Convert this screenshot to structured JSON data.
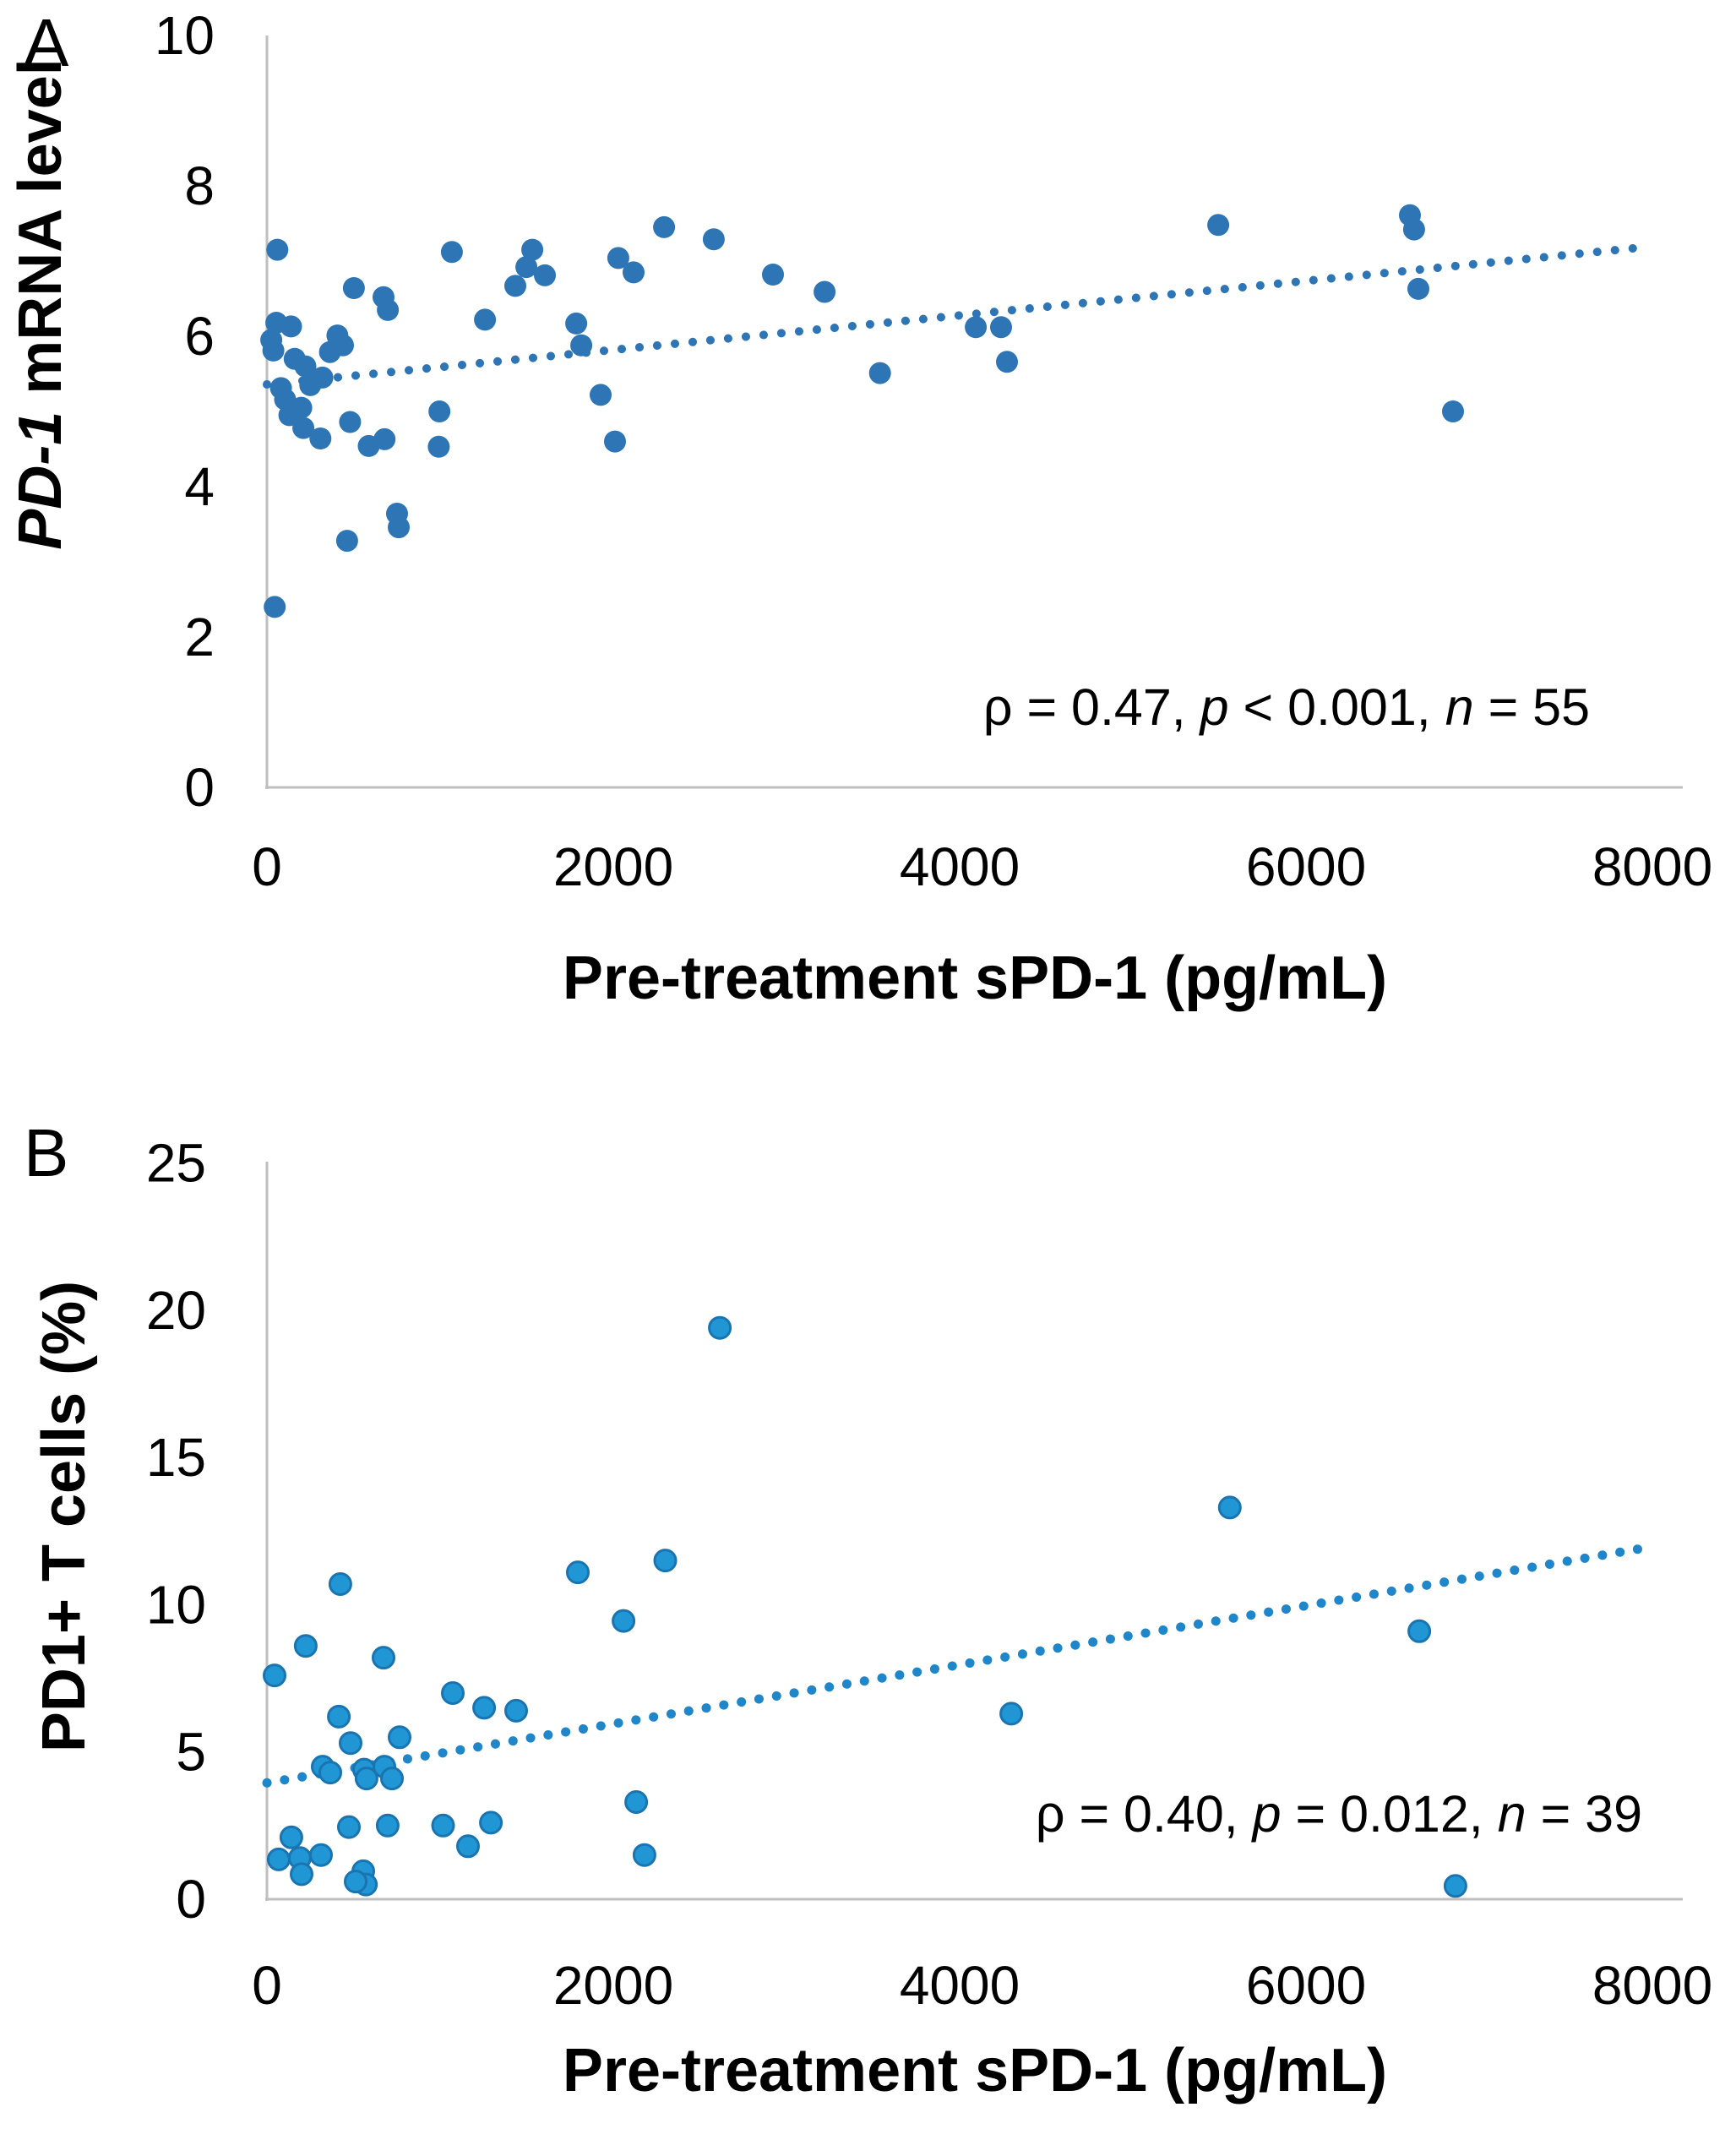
{
  "figure": {
    "background": "#ffffff",
    "axis_color": "#bfbfbf",
    "text_color": "#000000"
  },
  "panels": [
    {
      "label": "A",
      "y_title_segments": [
        {
          "text": "PD-1",
          "italic": true
        },
        {
          "text": " mRNA level",
          "italic": false
        }
      ],
      "x_title": "Pre-treatment sPD-1 (pg/mL)",
      "annotation_segments": [
        {
          "text": "ρ = 0.47, ",
          "italic": false
        },
        {
          "text": "p",
          "italic": true
        },
        {
          "text": " < 0.001, ",
          "italic": false
        },
        {
          "text": "n",
          "italic": true
        },
        {
          "text": " = 55",
          "italic": false
        }
      ],
      "marker_fill": "#2e75b6",
      "marker_stroke": "none",
      "trend_color": "#2e75b6"
    },
    {
      "label": "B",
      "y_title_segments": [
        {
          "text": "PD1+ T cells (%)",
          "italic": false
        }
      ],
      "x_title": "Pre-treatment sPD-1 (pg/mL)",
      "annotation_segments": [
        {
          "text": "ρ = 0.40, ",
          "italic": false
        },
        {
          "text": "p",
          "italic": true
        },
        {
          "text": " = 0.012, ",
          "italic": false
        },
        {
          "text": "n",
          "italic": true
        },
        {
          "text": " = 39",
          "italic": false
        }
      ],
      "marker_fill": "#2196d5",
      "marker_stroke": "#1a74b0",
      "trend_color": "#1e86c9"
    }
  ],
  "chart_data": [
    {
      "type": "scatter",
      "title": "",
      "xlabel": "Pre-treatment sPD-1 (pg/mL)",
      "ylabel": "PD-1 mRNA level",
      "xlim": [
        0,
        8000
      ],
      "ylim": [
        0,
        10
      ],
      "xticks": [
        0,
        2000,
        4000,
        6000,
        8000
      ],
      "yticks": [
        0,
        2,
        4,
        6,
        8,
        10
      ],
      "grid": false,
      "legend": false,
      "annotation": "ρ = 0.47, p < 0.001, n = 55",
      "stats": {
        "rho": 0.47,
        "p": "< 0.001",
        "n": 55
      },
      "trendline": {
        "type": "linear",
        "dotted": true,
        "x_start": 0,
        "y_start": 5.36,
        "x_end": 7980,
        "y_end": 7.19
      },
      "points": [
        [
          45,
          2.4
        ],
        [
          60,
          7.15
        ],
        [
          37,
          5.81
        ],
        [
          54,
          6.18
        ],
        [
          139,
          6.13
        ],
        [
          81,
          5.31
        ],
        [
          105,
          5.16
        ],
        [
          222,
          5.6
        ],
        [
          198,
          5.05
        ],
        [
          320,
          5.45
        ],
        [
          25,
          5.95
        ],
        [
          364,
          5.79
        ],
        [
          407,
          6.01
        ],
        [
          439,
          5.88
        ],
        [
          502,
          6.64
        ],
        [
          673,
          6.52
        ],
        [
          698,
          6.35
        ],
        [
          463,
          3.28
        ],
        [
          751,
          3.64
        ],
        [
          761,
          3.46
        ],
        [
          309,
          4.64
        ],
        [
          480,
          4.86
        ],
        [
          588,
          4.54
        ],
        [
          679,
          4.63
        ],
        [
          996,
          5.0
        ],
        [
          992,
          4.53
        ],
        [
          1068,
          7.12
        ],
        [
          1259,
          6.22
        ],
        [
          1434,
          6.67
        ],
        [
          1498,
          6.92
        ],
        [
          1532,
          7.15
        ],
        [
          1605,
          6.81
        ],
        [
          1786,
          6.17
        ],
        [
          1815,
          5.88
        ],
        [
          1927,
          5.22
        ],
        [
          2010,
          4.6
        ],
        [
          2029,
          7.04
        ],
        [
          2117,
          6.85
        ],
        [
          2293,
          7.45
        ],
        [
          2580,
          7.29
        ],
        [
          2922,
          6.82
        ],
        [
          3220,
          6.59
        ],
        [
          3540,
          5.51
        ],
        [
          4093,
          6.12
        ],
        [
          4239,
          6.12
        ],
        [
          4273,
          5.66
        ],
        [
          5493,
          7.48
        ],
        [
          6600,
          7.61
        ],
        [
          6624,
          7.42
        ],
        [
          6649,
          6.63
        ],
        [
          6849,
          5.0
        ],
        [
          160,
          5.7
        ],
        [
          250,
          5.35
        ],
        [
          130,
          4.95
        ],
        [
          210,
          4.78
        ]
      ]
    },
    {
      "type": "scatter",
      "title": "",
      "xlabel": "Pre-treatment sPD-1 (pg/mL)",
      "ylabel": "PD1+ T cells (%)",
      "xlim": [
        0,
        8000
      ],
      "ylim": [
        0,
        25
      ],
      "xticks": [
        0,
        2000,
        4000,
        6000,
        8000
      ],
      "yticks": [
        0,
        5,
        10,
        15,
        20,
        25
      ],
      "grid": false,
      "legend": false,
      "annotation": "ρ = 0.40, p = 0.012, n = 39",
      "stats": {
        "rho": 0.4,
        "p": "= 0.012",
        "n": 39
      },
      "trendline": {
        "type": "linear",
        "dotted": true,
        "x_start": 0,
        "y_start": 3.95,
        "x_end": 7980,
        "y_end": 11.95
      },
      "points": [
        [
          2615,
          19.4
        ],
        [
          5560,
          13.3
        ],
        [
          2300,
          11.5
        ],
        [
          1795,
          11.1
        ],
        [
          424,
          10.7
        ],
        [
          2059,
          9.45
        ],
        [
          6654,
          9.1
        ],
        [
          224,
          8.6
        ],
        [
          673,
          8.2
        ],
        [
          44,
          7.6
        ],
        [
          1073,
          7.0
        ],
        [
          1254,
          6.5
        ],
        [
          1439,
          6.4
        ],
        [
          4298,
          6.3
        ],
        [
          415,
          6.2
        ],
        [
          766,
          5.5
        ],
        [
          483,
          5.3
        ],
        [
          322,
          4.5
        ],
        [
          366,
          4.3
        ],
        [
          561,
          4.4
        ],
        [
          575,
          4.1
        ],
        [
          678,
          4.5
        ],
        [
          722,
          4.1
        ],
        [
          2132,
          3.3
        ],
        [
          473,
          2.45
        ],
        [
          697,
          2.5
        ],
        [
          1017,
          2.5
        ],
        [
          1293,
          2.6
        ],
        [
          1161,
          1.8
        ],
        [
          141,
          2.1
        ],
        [
          68,
          1.35
        ],
        [
          190,
          1.4
        ],
        [
          312,
          1.5
        ],
        [
          200,
          0.85
        ],
        [
          556,
          0.95
        ],
        [
          571,
          0.5
        ],
        [
          512,
          0.6
        ],
        [
          2180,
          1.5
        ],
        [
          6863,
          0.45
        ]
      ]
    }
  ]
}
